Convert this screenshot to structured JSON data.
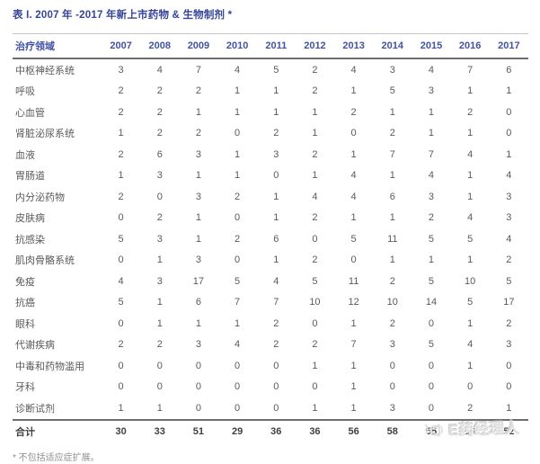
{
  "title": "表 I. 2007 年 -2017 年新上市药物 & 生物制剂 *",
  "table": {
    "area_header": "治疗领域",
    "years": [
      "2007",
      "2008",
      "2009",
      "2010",
      "2011",
      "2012",
      "2013",
      "2014",
      "2015",
      "2016",
      "2017"
    ],
    "rows": [
      {
        "label": "中枢神经系统",
        "values": [
          3,
          4,
          7,
          4,
          5,
          2,
          4,
          3,
          4,
          7,
          6
        ]
      },
      {
        "label": "呼吸",
        "values": [
          2,
          2,
          2,
          1,
          1,
          2,
          1,
          5,
          3,
          1,
          1
        ]
      },
      {
        "label": "心血管",
        "values": [
          2,
          2,
          1,
          1,
          1,
          1,
          2,
          1,
          1,
          2,
          0
        ]
      },
      {
        "label": "肾脏泌尿系统",
        "values": [
          1,
          2,
          2,
          0,
          2,
          1,
          0,
          2,
          1,
          1,
          0
        ]
      },
      {
        "label": "血液",
        "values": [
          2,
          6,
          3,
          1,
          3,
          2,
          1,
          7,
          7,
          4,
          1
        ]
      },
      {
        "label": "胃肠道",
        "values": [
          1,
          3,
          1,
          1,
          0,
          1,
          4,
          1,
          4,
          1,
          4
        ]
      },
      {
        "label": "内分泌药物",
        "values": [
          2,
          0,
          3,
          2,
          1,
          4,
          4,
          6,
          3,
          1,
          3
        ]
      },
      {
        "label": "皮肤病",
        "values": [
          0,
          2,
          1,
          0,
          1,
          2,
          1,
          1,
          2,
          4,
          3
        ]
      },
      {
        "label": "抗感染",
        "values": [
          5,
          3,
          1,
          2,
          6,
          0,
          5,
          11,
          5,
          5,
          4
        ]
      },
      {
        "label": "肌肉骨骼系统",
        "values": [
          0,
          1,
          3,
          0,
          1,
          2,
          0,
          1,
          1,
          1,
          2
        ]
      },
      {
        "label": "免疫",
        "values": [
          4,
          3,
          17,
          5,
          4,
          5,
          11,
          2,
          5,
          10,
          5
        ]
      },
      {
        "label": "抗癌",
        "values": [
          5,
          1,
          6,
          7,
          7,
          10,
          12,
          10,
          14,
          5,
          17
        ]
      },
      {
        "label": "眼科",
        "values": [
          0,
          1,
          1,
          1,
          2,
          0,
          1,
          2,
          0,
          1,
          2
        ]
      },
      {
        "label": "代谢疾病",
        "values": [
          2,
          2,
          3,
          4,
          2,
          2,
          7,
          3,
          5,
          4,
          3
        ]
      },
      {
        "label": "中毒和药物滥用",
        "values": [
          0,
          0,
          0,
          0,
          0,
          1,
          1,
          0,
          0,
          1,
          0
        ]
      },
      {
        "label": "牙科",
        "values": [
          0,
          0,
          0,
          0,
          0,
          0,
          1,
          0,
          0,
          0,
          0
        ]
      },
      {
        "label": "诊断试剂",
        "values": [
          1,
          1,
          0,
          0,
          0,
          1,
          1,
          3,
          0,
          2,
          1
        ]
      }
    ],
    "total": {
      "label": "合计",
      "values": [
        30,
        33,
        51,
        29,
        36,
        36,
        56,
        58,
        55,
        50,
        52
      ]
    }
  },
  "footnote": "* 不包括适应症扩展。",
  "watermark": {
    "text": "E药经理人",
    "icon": "megaphone-icon"
  },
  "colors": {
    "title": "#36459a",
    "header": "#4053a2",
    "body_text": "#5a5a5a",
    "total_text": "#3f3f3f",
    "rule_dark": "#6e6e6e",
    "rule_light": "#c4c4c4",
    "watermark": "#e0e0e0",
    "background": "#ffffff"
  }
}
